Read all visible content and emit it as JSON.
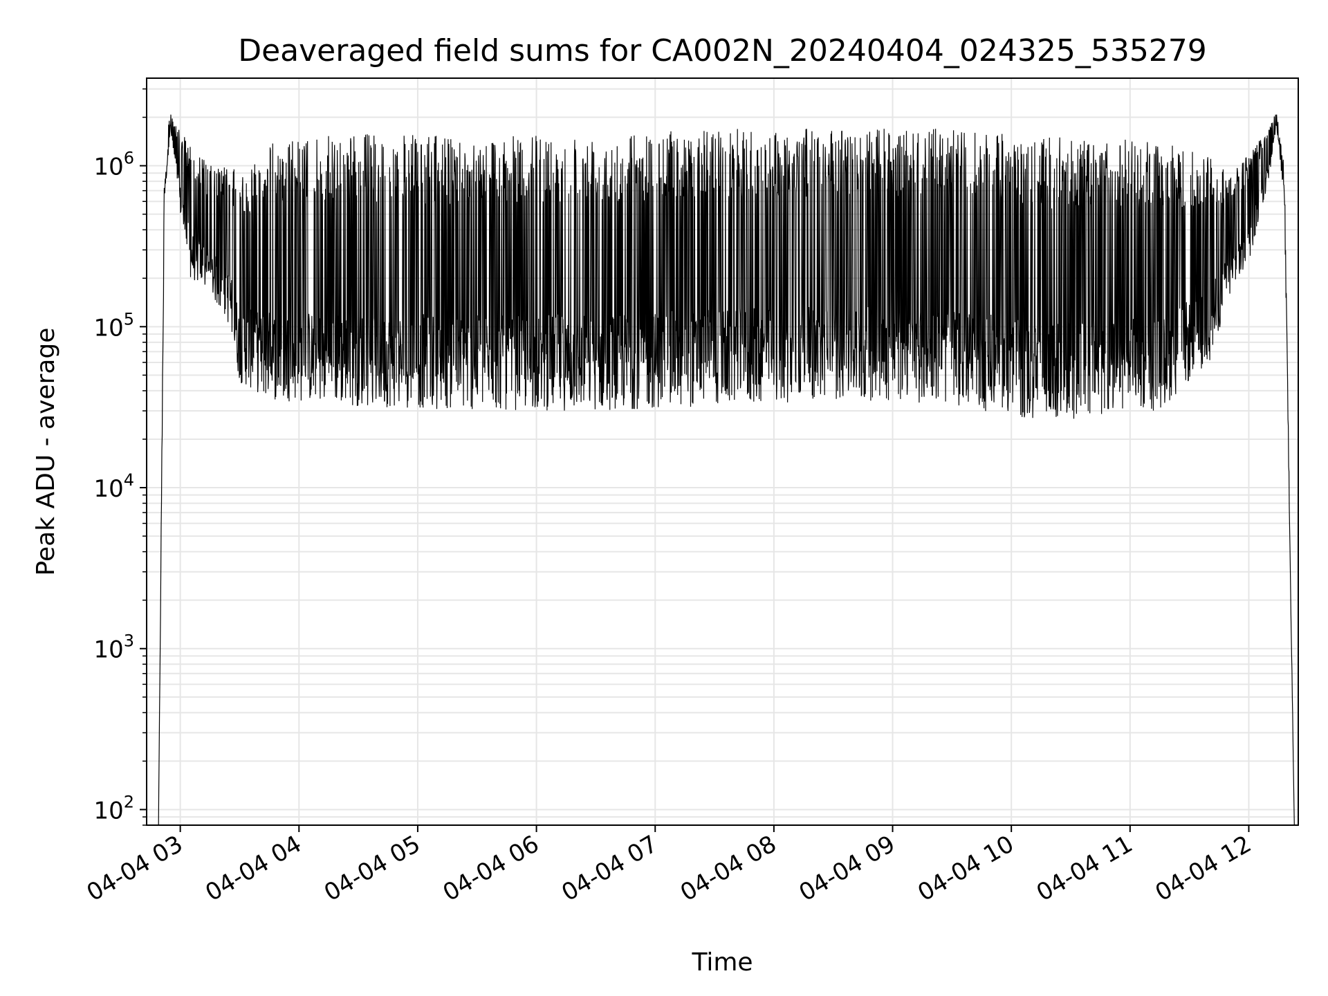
{
  "chart_data": {
    "type": "line",
    "title": "Deaveraged field sums for CA002N_20240404_024325_535279",
    "xlabel": "Time",
    "ylabel": "Peak ADU - average",
    "yscale": "log",
    "xlim": [
      "2024-04-04 02:43",
      "2024-04-04 12:25"
    ],
    "ylim": [
      80,
      3500000
    ],
    "grid": true,
    "colors": {
      "line": "#000000",
      "grid": "#e6e6e6",
      "axes": "#000000"
    },
    "x_ticks": [
      {
        "value": "2024-04-04 03:00",
        "label": "04-04 03"
      },
      {
        "value": "2024-04-04 04:00",
        "label": "04-04 04"
      },
      {
        "value": "2024-04-04 05:00",
        "label": "04-04 05"
      },
      {
        "value": "2024-04-04 06:00",
        "label": "04-04 06"
      },
      {
        "value": "2024-04-04 07:00",
        "label": "04-04 07"
      },
      {
        "value": "2024-04-04 08:00",
        "label": "04-04 08"
      },
      {
        "value": "2024-04-04 09:00",
        "label": "04-04 09"
      },
      {
        "value": "2024-04-04 10:00",
        "label": "04-04 10"
      },
      {
        "value": "2024-04-04 11:00",
        "label": "04-04 11"
      },
      {
        "value": "2024-04-04 12:00",
        "label": "04-04 12"
      }
    ],
    "y_ticks": [
      {
        "value": 100,
        "base": "10",
        "exp": "2"
      },
      {
        "value": 1000,
        "base": "10",
        "exp": "3"
      },
      {
        "value": 10000,
        "base": "10",
        "exp": "4"
      },
      {
        "value": 100000,
        "base": "10",
        "exp": "5"
      },
      {
        "value": 1000000,
        "base": "10",
        "exp": "6"
      }
    ],
    "series": [
      {
        "envelope": [
          {
            "x": "2024-04-04 02:49",
            "low": 80,
            "high": 80
          },
          {
            "x": "2024-04-04 02:52",
            "low": 600000,
            "high": 1200000
          },
          {
            "x": "2024-04-04 02:55",
            "low": 1700000,
            "high": 2200000
          },
          {
            "x": "2024-04-04 03:00",
            "low": 500000,
            "high": 1600000
          },
          {
            "x": "2024-04-04 03:05",
            "low": 200000,
            "high": 1400000
          },
          {
            "x": "2024-04-04 03:15",
            "low": 160000,
            "high": 1000000
          },
          {
            "x": "2024-04-04 03:25",
            "low": 100000,
            "high": 1000000
          },
          {
            "x": "2024-04-04 03:30",
            "low": 45000,
            "high": 900000
          },
          {
            "x": "2024-04-04 03:45",
            "low": 35000,
            "high": 1400000
          },
          {
            "x": "2024-04-04 04:30",
            "low": 32000,
            "high": 1600000
          },
          {
            "x": "2024-04-04 05:30",
            "low": 30000,
            "high": 1500000
          },
          {
            "x": "2024-04-04 06:30",
            "low": 30000,
            "high": 1600000
          },
          {
            "x": "2024-04-04 07:30",
            "low": 32000,
            "high": 1700000
          },
          {
            "x": "2024-04-04 08:30",
            "low": 35000,
            "high": 1700000
          },
          {
            "x": "2024-04-04 09:30",
            "low": 33000,
            "high": 1700000
          },
          {
            "x": "2024-04-04 10:15",
            "low": 25000,
            "high": 1500000
          },
          {
            "x": "2024-04-04 10:45",
            "low": 28000,
            "high": 1500000
          },
          {
            "x": "2024-04-04 11:15",
            "low": 30000,
            "high": 1400000
          },
          {
            "x": "2024-04-04 11:40",
            "low": 60000,
            "high": 1200000
          },
          {
            "x": "2024-04-04 11:50",
            "low": 150000,
            "high": 900000
          },
          {
            "x": "2024-04-04 12:00",
            "low": 250000,
            "high": 1200000
          },
          {
            "x": "2024-04-04 12:10",
            "low": 800000,
            "high": 1700000
          },
          {
            "x": "2024-04-04 12:14",
            "low": 1800000,
            "high": 2200000
          },
          {
            "x": "2024-04-04 12:18",
            "low": 600000,
            "high": 1000000
          },
          {
            "x": "2024-04-04 12:23",
            "low": 80,
            "high": 80
          }
        ]
      }
    ]
  }
}
